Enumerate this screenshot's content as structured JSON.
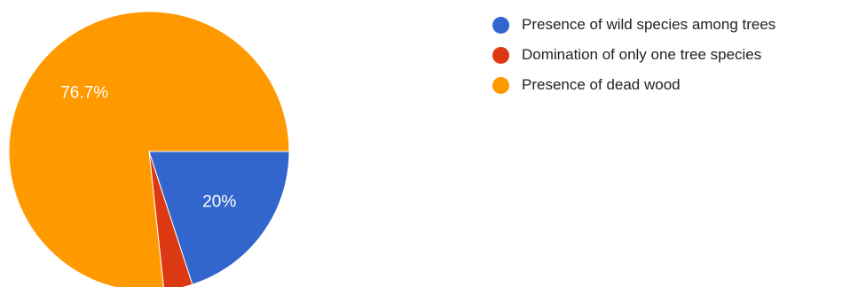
{
  "chart_data": {
    "type": "pie",
    "title": "",
    "categories": [
      "Presence of wild species among trees",
      "Domination of only one tree species",
      "Presence of dead wood"
    ],
    "values": [
      20,
      3.3,
      76.7
    ],
    "data_labels": [
      "20%",
      "",
      "76.7%"
    ],
    "colors": [
      "#3366cc",
      "#dc3912",
      "#ff9900"
    ],
    "start_angle_deg": 90,
    "direction": "clockwise",
    "legend_position": "right-top"
  }
}
